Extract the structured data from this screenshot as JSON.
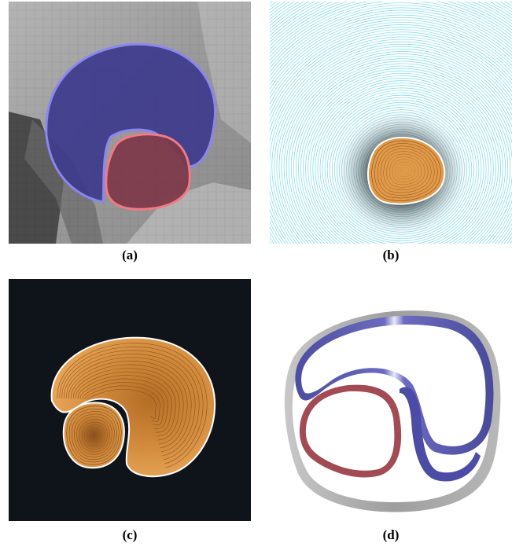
{
  "figure": {
    "panels": [
      {
        "id": "a",
        "caption": "(a)"
      },
      {
        "id": "b",
        "caption": "(b)"
      },
      {
        "id": "c",
        "caption": "(c)"
      },
      {
        "id": "d",
        "caption": "(d)"
      }
    ]
  },
  "colors": {
    "outer_region_fill": "#3d3a8c",
    "outer_region_stroke": "#8b86f0",
    "inner_region_fill": "#7d3a4a",
    "inner_region_stroke": "#f07a86",
    "contour_line_cyan": "#7ad8ea",
    "contour_core_orange": "#e09a4a",
    "dark_background": "#0f141a",
    "ribbon_blue": "#5a5aaa",
    "ribbon_red": "#a34b55",
    "ribbon_gray": "#b5b5b5"
  }
}
